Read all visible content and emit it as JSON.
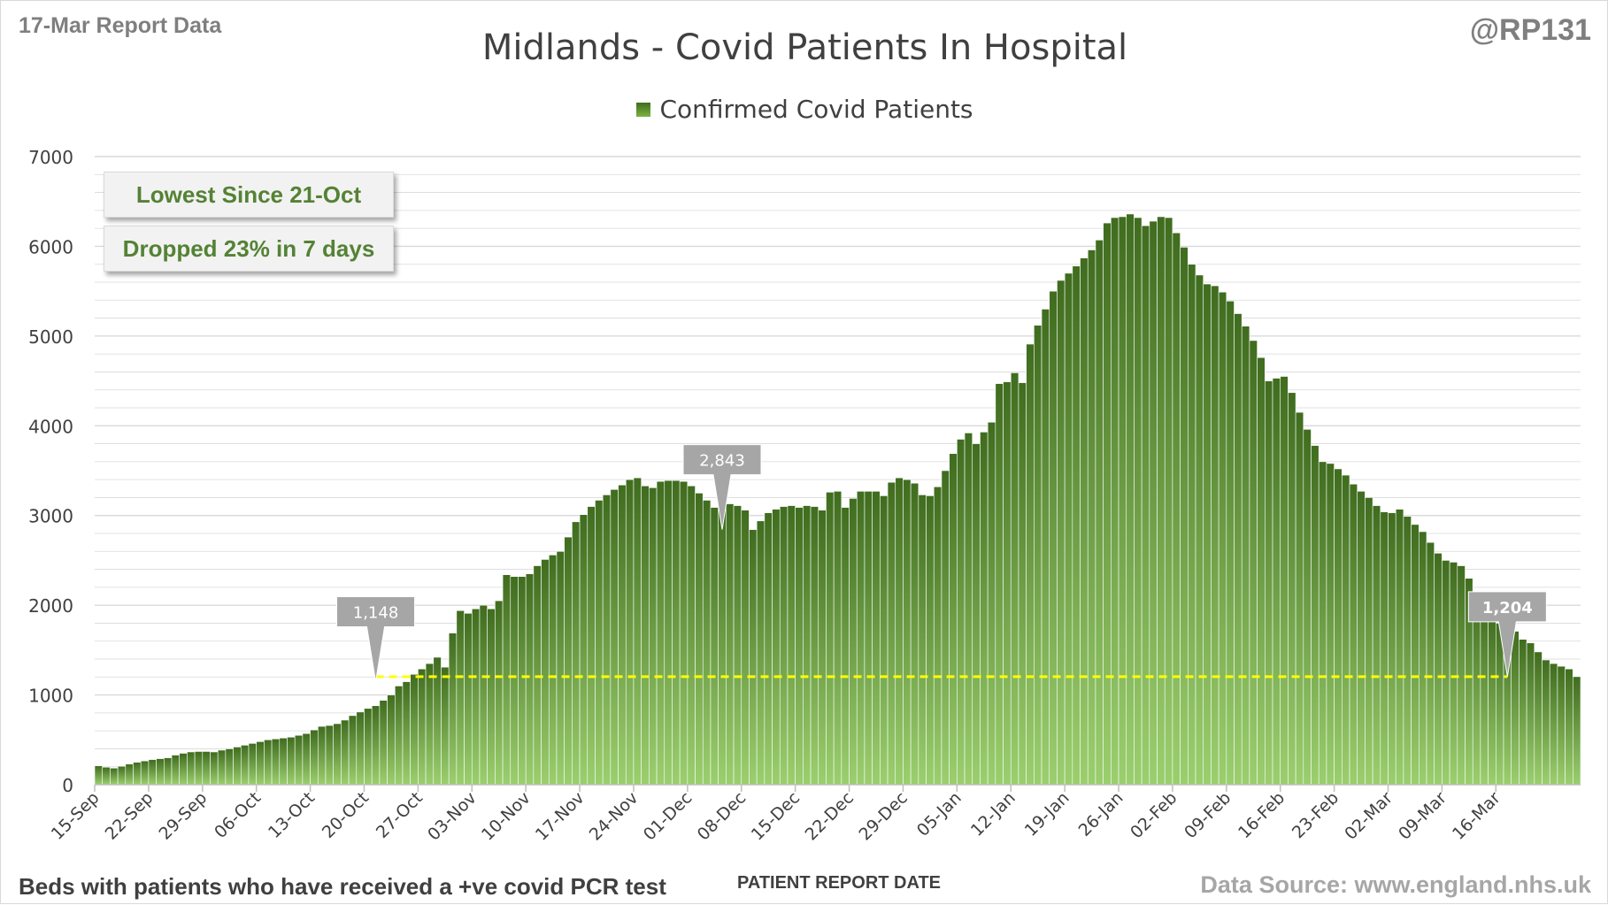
{
  "header": {
    "report_date": "17-Mar Report Data",
    "handle": "@RP131"
  },
  "footer": {
    "footnote": "Beds with patients who have received a +ve covid PCR test",
    "source": "Data Source: www.england.nhs.uk"
  },
  "callouts": [
    {
      "text": "Lowest Since 21-Oct"
    },
    {
      "text": "Dropped 23% in 7 days"
    }
  ],
  "colors": {
    "bar_top": "#3f6c1e",
    "bar_bottom": "#9bcf6e",
    "bar_stroke": "#ffffff",
    "reference_line": "#ffff00",
    "gridline": "#d9d9d9",
    "axis_text": "#404040",
    "callout_text": "#548235",
    "marker_fill": "#a6a6a6"
  },
  "chart_data": {
    "type": "bar",
    "title": "Midlands - Covid Patients In Hospital",
    "xlabel": "PATIENT REPORT DATE",
    "ylabel": "",
    "ylim": [
      0,
      7000
    ],
    "yticks": [
      0,
      1000,
      2000,
      3000,
      4000,
      5000,
      6000,
      7000
    ],
    "grid": true,
    "legend": {
      "position": "top-center"
    },
    "x_start_date": "15-Sep",
    "x_end_date": "17-Mar",
    "x_tick_labels": [
      "15-Sep",
      "22-Sep",
      "29-Sep",
      "06-Oct",
      "13-Oct",
      "20-Oct",
      "27-Oct",
      "03-Nov",
      "10-Nov",
      "17-Nov",
      "24-Nov",
      "01-Dec",
      "08-Dec",
      "15-Dec",
      "22-Dec",
      "29-Dec",
      "05-Jan",
      "12-Jan",
      "19-Jan",
      "26-Jan",
      "02-Feb",
      "09-Feb",
      "16-Feb",
      "23-Feb",
      "02-Mar",
      "09-Mar",
      "16-Mar"
    ],
    "series": [
      {
        "name": "Confirmed Covid Patients",
        "values": [
          210,
          195,
          185,
          205,
          230,
          250,
          265,
          280,
          290,
          300,
          330,
          350,
          365,
          370,
          370,
          365,
          385,
          400,
          420,
          440,
          460,
          480,
          500,
          510,
          520,
          530,
          550,
          570,
          610,
          650,
          660,
          680,
          720,
          770,
          810,
          850,
          880,
          940,
          1000,
          1100,
          1148,
          1230,
          1290,
          1350,
          1420,
          1310,
          1690,
          1940,
          1910,
          1960,
          2000,
          1960,
          2050,
          2340,
          2320,
          2320,
          2350,
          2440,
          2510,
          2560,
          2600,
          2760,
          2930,
          3010,
          3100,
          3170,
          3230,
          3290,
          3340,
          3400,
          3420,
          3330,
          3310,
          3380,
          3390,
          3390,
          3380,
          3330,
          3250,
          3170,
          3090,
          3120,
          3130,
          3110,
          3060,
          2843,
          2940,
          3030,
          3070,
          3100,
          3110,
          3090,
          3110,
          3100,
          3060,
          3260,
          3270,
          3090,
          3190,
          3270,
          3270,
          3270,
          3220,
          3370,
          3420,
          3400,
          3360,
          3230,
          3220,
          3320,
          3500,
          3690,
          3850,
          3920,
          3800,
          3930,
          4040,
          4470,
          4490,
          4590,
          4480,
          4910,
          5120,
          5300,
          5500,
          5620,
          5700,
          5780,
          5870,
          5960,
          6070,
          6260,
          6320,
          6330,
          6360,
          6320,
          6230,
          6280,
          6330,
          6320,
          6150,
          5990,
          5800,
          5680,
          5580,
          5560,
          5490,
          5390,
          5250,
          5110,
          4950,
          4760,
          4500,
          4530,
          4550,
          4370,
          4150,
          3960,
          3780,
          3600,
          3580,
          3520,
          3450,
          3350,
          3270,
          3200,
          3110,
          3040,
          3030,
          3070,
          2990,
          2900,
          2820,
          2700,
          2580,
          2500,
          2480,
          2440,
          2300,
          2150,
          2020,
          1900,
          1800,
          1760,
          1710,
          1620,
          1580,
          1480,
          1390,
          1350,
          1320,
          1290,
          1204
        ]
      }
    ],
    "annotations": [
      {
        "text": "1,148",
        "date": "21-Oct",
        "value": 1148
      },
      {
        "text": "2,843",
        "date": "05-Dec",
        "value": 2843
      },
      {
        "text": "1,204",
        "date": "17-Mar",
        "value": 1204
      }
    ],
    "reference_line": {
      "value": 1204,
      "from_date": "21-Oct",
      "to_date": "17-Mar",
      "style": "dashed"
    }
  }
}
